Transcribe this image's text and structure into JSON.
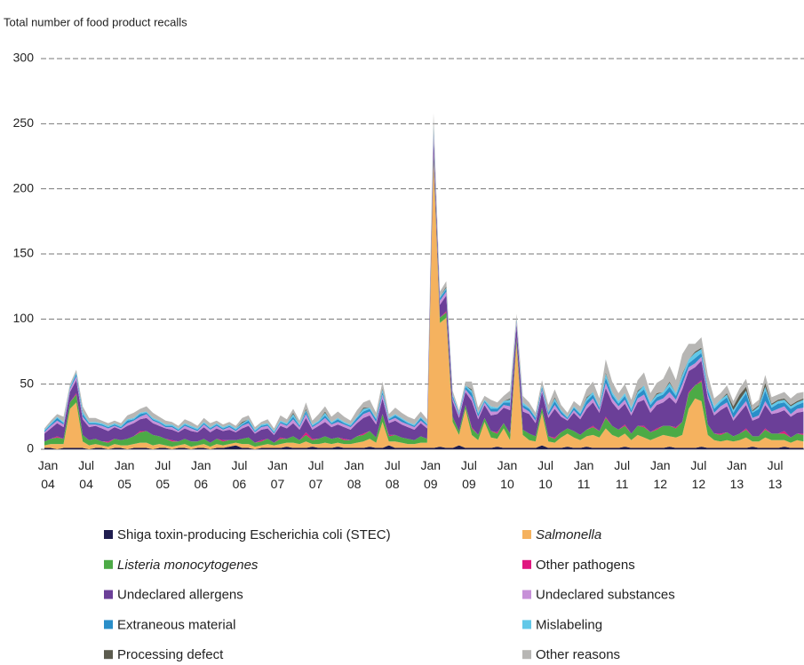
{
  "chart_data": {
    "type": "stacked_area",
    "subtitle": "Total number of food product recalls",
    "ylim": [
      0,
      300
    ],
    "yticks": [
      0,
      50,
      100,
      150,
      200,
      250,
      300
    ],
    "grid": true,
    "categories": [
      "Jan 04",
      null,
      null,
      null,
      null,
      null,
      "Jul 04",
      null,
      null,
      null,
      null,
      null,
      "Jan 05",
      null,
      null,
      null,
      null,
      null,
      "Jul 05",
      null,
      null,
      null,
      null,
      null,
      "Jan 06",
      null,
      null,
      null,
      null,
      null,
      "Jul 06",
      null,
      null,
      null,
      null,
      null,
      "Jan 07",
      null,
      null,
      null,
      null,
      null,
      "Jul 07",
      null,
      null,
      null,
      null,
      null,
      "Jan 08",
      null,
      null,
      null,
      null,
      null,
      "Jul 08",
      null,
      null,
      null,
      null,
      null,
      "Jan 09",
      null,
      null,
      null,
      null,
      null,
      "Jul 09",
      null,
      null,
      null,
      null,
      null,
      "Jan 10",
      null,
      null,
      null,
      null,
      null,
      "Jul 10",
      null,
      null,
      null,
      null,
      null,
      "Jan 11",
      null,
      null,
      null,
      null,
      null,
      "Jul 11",
      null,
      null,
      null,
      null,
      null,
      "Jan 12",
      null,
      null,
      null,
      null,
      null,
      "Jul 12",
      null,
      null,
      null,
      null,
      null,
      "Jan 13",
      null,
      null,
      null,
      null,
      null,
      "Jul 13",
      null,
      null,
      null,
      null,
      null
    ],
    "series": [
      {
        "name": "Shiga toxin-producing Escherichia coli (STEC)",
        "color": "#1f1d4f",
        "values": [
          1,
          1,
          0,
          1,
          1,
          1,
          1,
          0,
          1,
          1,
          0,
          1,
          1,
          0,
          1,
          1,
          1,
          0,
          1,
          1,
          0,
          1,
          1,
          0,
          1,
          1,
          0,
          1,
          1,
          2,
          3,
          1,
          1,
          0,
          1,
          1,
          1,
          1,
          2,
          1,
          1,
          1,
          2,
          1,
          1,
          1,
          2,
          1,
          1,
          1,
          1,
          2,
          1,
          1,
          3,
          1,
          1,
          1,
          1,
          1,
          1,
          1,
          2,
          1,
          1,
          3,
          1,
          1,
          1,
          1,
          1,
          2,
          1,
          1,
          1,
          1,
          1,
          1,
          3,
          1,
          1,
          1,
          2,
          1,
          1,
          2,
          1,
          1,
          1,
          1,
          1,
          2,
          1,
          1,
          1,
          1,
          1,
          1,
          2,
          1,
          1,
          1,
          1,
          2,
          1,
          1,
          1,
          1,
          1,
          1,
          1,
          2,
          1,
          1,
          1,
          1,
          2,
          1,
          1,
          1
        ]
      },
      {
        "name": "Salmonella",
        "italic": true,
        "color": "#f5b25f",
        "values": [
          2,
          3,
          4,
          3,
          30,
          35,
          5,
          3,
          3,
          2,
          2,
          3,
          2,
          3,
          3,
          4,
          4,
          3,
          3,
          2,
          2,
          2,
          3,
          2,
          2,
          3,
          2,
          3,
          2,
          2,
          2,
          3,
          3,
          2,
          2,
          3,
          2,
          3,
          3,
          4,
          3,
          5,
          2,
          3,
          4,
          3,
          3,
          3,
          3,
          4,
          5,
          6,
          4,
          20,
          3,
          5,
          4,
          3,
          3,
          4,
          4,
          220,
          95,
          100,
          20,
          8,
          30,
          10,
          6,
          20,
          8,
          6,
          15,
          6,
          80,
          10,
          6,
          5,
          25,
          5,
          4,
          8,
          10,
          8,
          6,
          8,
          10,
          8,
          15,
          10,
          8,
          10,
          6,
          10,
          8,
          6,
          8,
          10,
          8,
          8,
          10,
          30,
          38,
          35,
          10,
          6,
          5,
          6,
          5,
          6,
          8,
          4,
          5,
          8,
          6,
          6,
          5,
          4,
          6,
          5
        ]
      },
      {
        "name": "Listeria monocytogenes",
        "italic": true,
        "color": "#4caa46",
        "values": [
          3,
          4,
          5,
          4,
          5,
          6,
          5,
          4,
          4,
          3,
          3,
          4,
          4,
          5,
          6,
          8,
          9,
          8,
          6,
          5,
          4,
          3,
          4,
          4,
          3,
          4,
          3,
          4,
          3,
          3,
          2,
          4,
          5,
          3,
          3,
          4,
          2,
          4,
          3,
          5,
          3,
          5,
          3,
          4,
          5,
          4,
          4,
          3,
          3,
          5,
          5,
          6,
          4,
          6,
          4,
          5,
          4,
          4,
          3,
          5,
          3,
          5,
          4,
          4,
          4,
          3,
          3,
          5,
          4,
          3,
          5,
          4,
          4,
          5,
          4,
          4,
          5,
          4,
          4,
          4,
          3,
          4,
          4,
          5,
          4,
          5,
          6,
          5,
          8,
          7,
          6,
          6,
          5,
          7,
          8,
          6,
          6,
          7,
          8,
          7,
          10,
          12,
          10,
          15,
          8,
          5,
          5,
          6,
          4,
          5,
          6,
          4,
          4,
          6,
          5,
          5,
          5,
          4,
          5,
          5
        ]
      },
      {
        "name": "Other pathogens",
        "color": "#e0177f",
        "values": [
          0,
          0,
          1,
          0,
          0,
          1,
          0,
          0,
          0,
          0,
          1,
          0,
          0,
          0,
          0,
          1,
          0,
          0,
          0,
          0,
          1,
          0,
          0,
          0,
          0,
          0,
          0,
          0,
          1,
          0,
          0,
          0,
          0,
          0,
          1,
          0,
          0,
          1,
          0,
          0,
          0,
          2,
          1,
          0,
          0,
          0,
          0,
          1,
          0,
          0,
          1,
          0,
          0,
          0,
          1,
          0,
          0,
          0,
          0,
          0,
          0,
          1,
          0,
          1,
          0,
          0,
          0,
          1,
          0,
          0,
          0,
          1,
          0,
          0,
          1,
          0,
          0,
          0,
          0,
          0,
          1,
          0,
          0,
          0,
          0,
          0,
          1,
          0,
          1,
          0,
          0,
          1,
          0,
          0,
          1,
          0,
          1,
          0,
          0,
          1,
          0,
          1,
          0,
          1,
          0,
          0,
          1,
          0,
          0,
          0,
          1,
          0,
          0,
          1,
          0,
          0,
          2,
          0,
          0,
          1
        ]
      },
      {
        "name": "Undeclared allergens",
        "color": "#6b3f98",
        "values": [
          6,
          8,
          10,
          9,
          8,
          10,
          12,
          10,
          10,
          10,
          8,
          9,
          8,
          10,
          10,
          9,
          10,
          9,
          8,
          8,
          8,
          7,
          8,
          8,
          7,
          9,
          8,
          8,
          7,
          8,
          6,
          8,
          9,
          7,
          8,
          8,
          6,
          9,
          8,
          10,
          8,
          11,
          7,
          10,
          11,
          9,
          10,
          9,
          8,
          10,
          12,
          12,
          10,
          12,
          9,
          11,
          10,
          9,
          8,
          10,
          8,
          12,
          10,
          12,
          12,
          10,
          10,
          20,
          12,
          10,
          12,
          14,
          12,
          18,
          10,
          14,
          15,
          10,
          12,
          14,
          22,
          12,
          6,
          14,
          12,
          16,
          18,
          14,
          22,
          18,
          15,
          16,
          14,
          18,
          20,
          15,
          18,
          18,
          22,
          18,
          25,
          16,
          14,
          15,
          20,
          14,
          18,
          20,
          12,
          16,
          18,
          12,
          14,
          18,
          15,
          16,
          16,
          16,
          16,
          17
        ]
      },
      {
        "name": "Undeclared substances",
        "color": "#c790d8",
        "values": [
          1,
          2,
          2,
          2,
          2,
          3,
          2,
          2,
          1,
          2,
          2,
          1,
          1,
          2,
          2,
          2,
          3,
          2,
          2,
          1,
          2,
          1,
          2,
          2,
          1,
          2,
          2,
          2,
          1,
          2,
          1,
          2,
          2,
          1,
          2,
          2,
          1,
          2,
          2,
          3,
          2,
          3,
          2,
          2,
          3,
          2,
          2,
          2,
          2,
          2,
          3,
          3,
          2,
          3,
          2,
          2,
          2,
          2,
          2,
          2,
          2,
          5,
          3,
          3,
          2,
          2,
          2,
          3,
          2,
          2,
          3,
          2,
          2,
          3,
          2,
          3,
          2,
          2,
          2,
          2,
          3,
          2,
          1,
          2,
          2,
          3,
          3,
          2,
          4,
          3,
          3,
          3,
          2,
          3,
          4,
          3,
          3,
          3,
          4,
          3,
          4,
          3,
          3,
          3,
          3,
          2,
          3,
          3,
          2,
          3,
          3,
          2,
          2,
          3,
          2,
          3,
          3,
          2,
          3,
          3
        ]
      },
      {
        "name": "Extraneous material",
        "color": "#2a8ec8",
        "values": [
          1,
          1,
          2,
          1,
          1,
          2,
          2,
          1,
          1,
          1,
          1,
          1,
          1,
          2,
          1,
          2,
          1,
          1,
          1,
          1,
          1,
          1,
          1,
          1,
          1,
          1,
          1,
          1,
          1,
          1,
          1,
          1,
          2,
          1,
          1,
          1,
          1,
          1,
          1,
          2,
          1,
          2,
          1,
          1,
          2,
          1,
          2,
          1,
          1,
          2,
          2,
          2,
          2,
          2,
          1,
          2,
          2,
          1,
          1,
          2,
          1,
          3,
          2,
          2,
          2,
          1,
          2,
          3,
          2,
          1,
          2,
          2,
          2,
          3,
          1,
          2,
          2,
          2,
          2,
          2,
          3,
          2,
          1,
          2,
          2,
          3,
          3,
          2,
          4,
          3,
          2,
          3,
          2,
          3,
          4,
          3,
          3,
          3,
          4,
          3,
          4,
          3,
          4,
          3,
          3,
          3,
          3,
          4,
          4,
          5,
          6,
          4,
          5,
          8,
          3,
          4,
          3,
          4,
          3,
          4
        ]
      },
      {
        "name": "Mislabeling",
        "color": "#62c8e8",
        "values": [
          1,
          1,
          1,
          1,
          1,
          1,
          2,
          1,
          1,
          1,
          1,
          1,
          1,
          1,
          1,
          1,
          1,
          1,
          1,
          1,
          1,
          1,
          1,
          1,
          1,
          1,
          1,
          1,
          1,
          1,
          1,
          1,
          1,
          1,
          1,
          1,
          1,
          1,
          1,
          2,
          1,
          1,
          1,
          1,
          2,
          1,
          1,
          1,
          1,
          1,
          2,
          1,
          1,
          2,
          1,
          1,
          1,
          1,
          1,
          1,
          1,
          2,
          1,
          1,
          1,
          1,
          1,
          2,
          1,
          1,
          2,
          1,
          1,
          2,
          1,
          2,
          1,
          1,
          1,
          1,
          2,
          1,
          1,
          1,
          1,
          2,
          2,
          1,
          3,
          2,
          2,
          2,
          2,
          2,
          3,
          2,
          2,
          2,
          3,
          2,
          3,
          3,
          4,
          3,
          2,
          2,
          2,
          2,
          2,
          2,
          2,
          1,
          2,
          3,
          2,
          2,
          2,
          2,
          2,
          2
        ]
      },
      {
        "name": "Processing defect",
        "color": "#5b5b4e",
        "values": [
          0,
          0,
          0,
          0,
          0,
          0,
          0,
          0,
          0,
          0,
          0,
          0,
          0,
          0,
          0,
          0,
          0,
          0,
          0,
          0,
          0,
          0,
          0,
          0,
          0,
          0,
          0,
          0,
          0,
          0,
          0,
          1,
          0,
          0,
          0,
          0,
          0,
          0,
          0,
          1,
          0,
          1,
          0,
          0,
          1,
          0,
          0,
          0,
          0,
          0,
          1,
          0,
          0,
          1,
          0,
          0,
          0,
          0,
          0,
          0,
          0,
          1,
          0,
          1,
          0,
          0,
          0,
          1,
          0,
          0,
          0,
          0,
          0,
          1,
          0,
          0,
          0,
          0,
          0,
          0,
          1,
          0,
          0,
          0,
          0,
          1,
          0,
          0,
          1,
          0,
          0,
          0,
          0,
          1,
          0,
          0,
          1,
          0,
          1,
          0,
          1,
          0,
          1,
          1,
          0,
          0,
          0,
          1,
          3,
          4,
          3,
          1,
          1,
          3,
          1,
          1,
          1,
          1,
          1,
          1
        ]
      },
      {
        "name": "Other reasons",
        "color": "#b7b6b4",
        "values": [
          1,
          2,
          2,
          4,
          2,
          2,
          4,
          3,
          3,
          2,
          2,
          2,
          2,
          3,
          4,
          3,
          4,
          4,
          3,
          3,
          2,
          2,
          3,
          3,
          2,
          3,
          3,
          2,
          2,
          2,
          2,
          3,
          3,
          2,
          2,
          3,
          2,
          4,
          3,
          3,
          3,
          5,
          3,
          5,
          4,
          4,
          5,
          4,
          3,
          5,
          4,
          6,
          4,
          5,
          3,
          5,
          4,
          4,
          4,
          4,
          3,
          8,
          4,
          4,
          3,
          2,
          3,
          6,
          4,
          3,
          5,
          4,
          4,
          6,
          4,
          5,
          4,
          3,
          4,
          5,
          6,
          4,
          3,
          4,
          5,
          6,
          8,
          6,
          10,
          8,
          6,
          7,
          6,
          8,
          10,
          7,
          8,
          10,
          12,
          10,
          15,
          12,
          6,
          8,
          10,
          6,
          5,
          6,
          4,
          5,
          6,
          4,
          4,
          6,
          5,
          4,
          5,
          5,
          6,
          5
        ]
      }
    ]
  }
}
